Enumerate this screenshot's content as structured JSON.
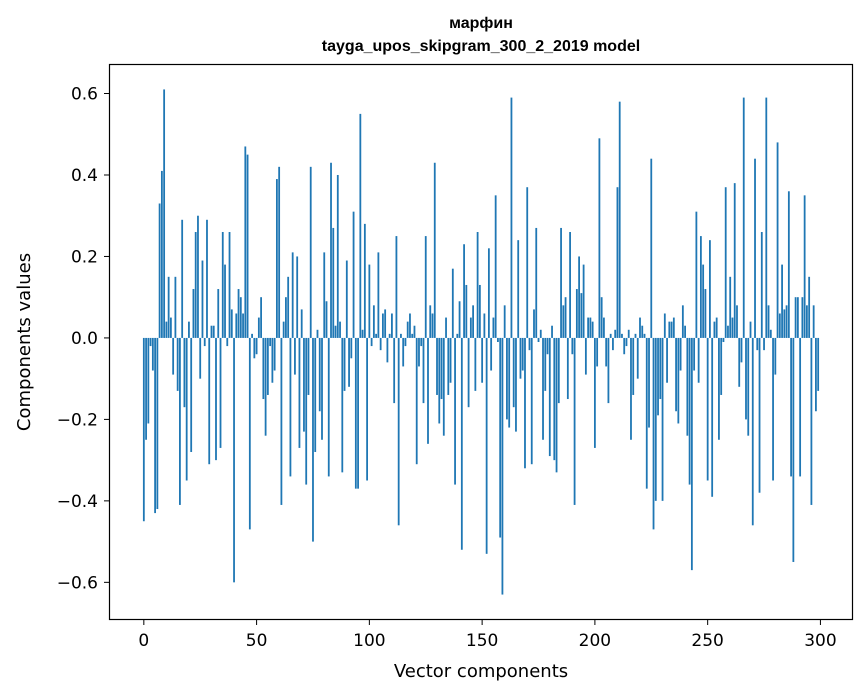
{
  "chart_data": {
    "type": "bar",
    "title": "марфин",
    "subtitle": "tayga_upos_skipgram_300_2_2019 model",
    "xlabel": "Vector components",
    "ylabel": "Components values",
    "xlim": [
      -15,
      314
    ],
    "ylim": [
      -0.69,
      0.67
    ],
    "grid": false,
    "xticks": [
      0,
      50,
      100,
      150,
      200,
      250,
      300
    ],
    "xtick_labels": [
      "0",
      "50",
      "100",
      "150",
      "200",
      "250",
      "300"
    ],
    "yticks": [
      -0.6,
      -0.4,
      -0.2,
      0.0,
      0.2,
      0.4,
      0.6
    ],
    "ytick_labels": [
      "−0.6",
      "−0.4",
      "−0.2",
      "0.0",
      "0.2",
      "0.4",
      "0.6"
    ],
    "bar_color": "#1f77b4",
    "bar_width": 0.8,
    "x": "0..299",
    "values": [
      -0.45,
      -0.25,
      -0.21,
      -0.02,
      -0.08,
      -0.43,
      -0.42,
      0.33,
      0.41,
      0.61,
      0.04,
      0.15,
      0.05,
      -0.09,
      0.15,
      -0.13,
      -0.41,
      0.29,
      -0.17,
      -0.35,
      0.04,
      -0.28,
      0.12,
      0.26,
      0.3,
      -0.1,
      0.19,
      -0.02,
      0.29,
      -0.31,
      0.03,
      0.03,
      -0.3,
      0.12,
      -0.27,
      0.26,
      0.18,
      -0.02,
      0.26,
      0.07,
      -0.6,
      0.06,
      0.12,
      0.1,
      0.06,
      0.47,
      0.45,
      -0.47,
      0.01,
      -0.05,
      -0.04,
      0.05,
      0.1,
      -0.15,
      -0.24,
      -0.14,
      -0.02,
      -0.11,
      -0.08,
      0.39,
      0.42,
      -0.41,
      0.04,
      0.1,
      0.15,
      -0.34,
      0.21,
      -0.09,
      0.2,
      -0.27,
      0.07,
      -0.23,
      -0.36,
      -0.14,
      0.42,
      -0.5,
      -0.28,
      0.02,
      -0.18,
      -0.25,
      0.21,
      0.09,
      -0.34,
      0.43,
      0.27,
      0.03,
      0.4,
      0.04,
      -0.33,
      -0.13,
      0.19,
      -0.12,
      -0.05,
      0.31,
      -0.37,
      -0.37,
      0.55,
      0.02,
      0.28,
      -0.35,
      0.18,
      -0.02,
      0.08,
      0.01,
      0.21,
      -0.03,
      0.06,
      0.07,
      -0.06,
      0.01,
      0.06,
      -0.16,
      0.25,
      -0.46,
      0.01,
      -0.07,
      -0.02,
      0.04,
      0.06,
      0.01,
      0.03,
      -0.31,
      -0.07,
      -0.02,
      -0.16,
      0.25,
      -0.26,
      0.08,
      0.06,
      0.43,
      -0.14,
      -0.21,
      -0.15,
      -0.24,
      0.05,
      -0.14,
      -0.11,
      0.17,
      -0.36,
      0.01,
      0.09,
      -0.52,
      0.23,
      0.13,
      -0.17,
      0.05,
      0.08,
      -0.13,
      0.26,
      0.13,
      -0.11,
      0.06,
      -0.53,
      0.22,
      -0.08,
      0.05,
      0.35,
      -0.01,
      -0.49,
      -0.63,
      0.08,
      -0.2,
      -0.22,
      0.59,
      -0.17,
      -0.23,
      0.24,
      -0.1,
      -0.08,
      -0.32,
      0.37,
      -0.03,
      -0.31,
      0.07,
      0.27,
      -0.01,
      0.02,
      -0.25,
      -0.13,
      -0.04,
      -0.29,
      0.03,
      -0.3,
      -0.33,
      -0.16,
      0.27,
      0.08,
      0.1,
      -0.15,
      0.26,
      -0.04,
      -0.41,
      0.12,
      0.2,
      0.11,
      0.18,
      -0.09,
      0.05,
      0.05,
      0.04,
      -0.27,
      -0.07,
      0.49,
      0.1,
      0.05,
      -0.07,
      -0.16,
      0.01,
      -0.03,
      0.02,
      0.37,
      0.58,
      0.01,
      -0.04,
      -0.02,
      0.02,
      -0.25,
      -0.14,
      0.01,
      -0.1,
      0.05,
      0.03,
      0.01,
      -0.37,
      -0.22,
      0.44,
      -0.47,
      -0.4,
      -0.19,
      -0.15,
      -0.4,
      0.06,
      -0.11,
      0.04,
      0.04,
      0.05,
      -0.18,
      -0.21,
      -0.08,
      0.08,
      0.03,
      -0.24,
      -0.36,
      -0.57,
      -0.08,
      0.31,
      -0.11,
      0.25,
      0.18,
      0.12,
      -0.35,
      0.24,
      -0.39,
      0.04,
      0.05,
      -0.25,
      -0.14,
      -0.01,
      0.37,
      0.03,
      0.15,
      0.05,
      0.38,
      0.08,
      -0.12,
      -0.06,
      0.59,
      -0.2,
      -0.24,
      0.04,
      -0.46,
      0.44,
      -0.03,
      -0.38,
      0.26,
      -0.03,
      0.59,
      0.08,
      0.02,
      -0.35,
      -0.09,
      0.48,
      0.06,
      0.18,
      0.07,
      0.08,
      0.36,
      -0.34,
      -0.55,
      0.1,
      0.1,
      -0.34,
      0.1,
      0.35,
      0.08,
      0.15,
      -0.41,
      0.08,
      -0.18,
      -0.13
    ]
  }
}
